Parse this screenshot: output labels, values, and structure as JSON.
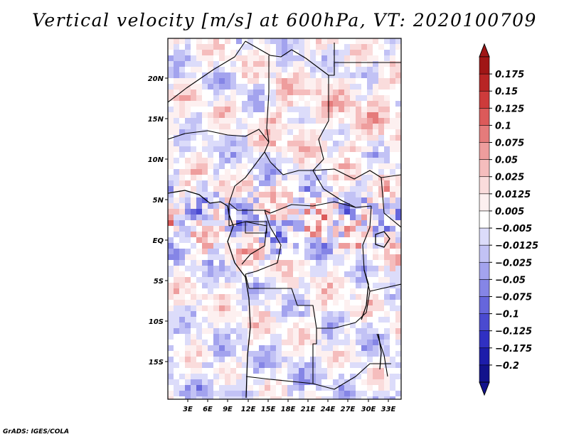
{
  "title": "Vertical velocity [m/s] at 600hPa, VT: 2020100709",
  "footer": "GrADS: IGES/COLA",
  "lat_labels": [
    "20N",
    "15N",
    "10N",
    "5N",
    "EQ",
    "5S",
    "10S",
    "15S"
  ],
  "lon_labels": [
    "3E",
    "6E",
    "9E",
    "12E",
    "15E",
    "18E",
    "21E",
    "24E",
    "27E",
    "30E",
    "33E"
  ],
  "colorbar": {
    "labels": [
      "0.175",
      "0.15",
      "0.125",
      "0.1",
      "0.075",
      "0.05",
      "0.025",
      "0.0125",
      "0.005",
      "-0.005",
      "-0.0125",
      "-0.025",
      "-0.05",
      "-0.075",
      "-0.1",
      "-0.125",
      "-0.175",
      "-0.2"
    ],
    "colors": [
      "#a01616",
      "#b82525",
      "#cd3b3b",
      "#dc5a5a",
      "#e57b7b",
      "#ee9d9d",
      "#f5bdbd",
      "#fadcdc",
      "#fdf0f0",
      "#ffffff",
      "#dcdcfa",
      "#c2c2f5",
      "#a3a3ee",
      "#8585e6",
      "#6666dc",
      "#4a4ad0",
      "#3030c2",
      "#1c1caa",
      "#12128c"
    ]
  },
  "chart_data": {
    "type": "heatmap",
    "title": "Vertical velocity [m/s] at 600hPa, VT: 2020100709",
    "variable": "Vertical velocity",
    "units": "m/s",
    "level": "600hPa",
    "valid_time": "2020100709",
    "x_ticks": [
      "3E",
      "6E",
      "9E",
      "12E",
      "15E",
      "18E",
      "21E",
      "24E",
      "27E",
      "30E",
      "33E"
    ],
    "y_ticks": [
      "20N",
      "15N",
      "10N",
      "5N",
      "EQ",
      "5S",
      "10S",
      "15S"
    ],
    "contour_levels": [
      -0.2,
      -0.175,
      -0.125,
      -0.1,
      -0.075,
      -0.05,
      -0.025,
      -0.0125,
      -0.005,
      0.005,
      0.0125,
      0.025,
      0.05,
      0.075,
      0.1,
      0.125,
      0.15,
      0.175
    ]
  }
}
